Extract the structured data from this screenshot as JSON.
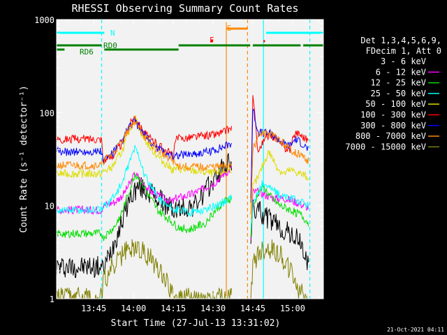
{
  "chart_data": {
    "type": "line",
    "title": "RHESSI Observing Summary Count Rates",
    "xlabel": "Start Time (27-Jul-13 13:31:02)",
    "ylabel": "Count Rate (s⁻¹ detector⁻¹)",
    "ylog": true,
    "ylim": [
      1,
      1000
    ],
    "xlim_min": [
      0,
      100.6
    ],
    "x_ticks": [
      {
        "t": 14.0,
        "label": "13:45"
      },
      {
        "t": 29.0,
        "label": "14:00"
      },
      {
        "t": 44.0,
        "label": "14:15"
      },
      {
        "t": 59.0,
        "label": "14:30"
      },
      {
        "t": 74.0,
        "label": "14:45"
      },
      {
        "t": 89.0,
        "label": "15:00"
      }
    ],
    "y_ticks": [
      {
        "v": 1,
        "label": "1"
      },
      {
        "v": 10,
        "label": "10"
      },
      {
        "v": 100,
        "label": "100"
      },
      {
        "v": 1000,
        "label": "1000"
      }
    ],
    "legend_header": [
      "Det 1,3,4,5,6,9,",
      "FDecim 1, Att 0"
    ],
    "series": [
      {
        "name": "3 - 6 keV",
        "color": "#000000",
        "x": [
          0,
          10,
          17,
          17.5,
          24,
          27,
          29,
          31,
          35,
          38,
          44,
          45,
          52,
          56,
          60,
          63,
          66,
          72,
          73,
          74,
          76,
          78,
          82,
          85,
          88,
          92,
          95
        ],
        "y": [
          2.2,
          2.2,
          2.2,
          2.0,
          6,
          11,
          14,
          16,
          14,
          12,
          9,
          9,
          10,
          14,
          20,
          26,
          30,
          null,
          3,
          9,
          9,
          8,
          6.5,
          5.5,
          5,
          4,
          2.2
        ]
      },
      {
        "name": "6 - 12 keV",
        "color": "#ff00ff",
        "x": [
          0,
          10,
          17,
          17.5,
          22,
          25,
          28,
          29.5,
          31,
          33,
          36,
          40,
          44,
          45,
          50,
          55,
          60,
          63,
          66,
          72,
          73,
          74,
          76,
          79,
          82,
          86,
          90,
          95
        ],
        "y": [
          9,
          9,
          9,
          10,
          11,
          13,
          18,
          22,
          20,
          17,
          14,
          12,
          11,
          12,
          13,
          15,
          18,
          22,
          25,
          null,
          3,
          14,
          14,
          13,
          12,
          12,
          11,
          9.5
        ]
      },
      {
        "name": "12 - 25 keV",
        "color": "#00dd00",
        "x": [
          0,
          10,
          17,
          17.5,
          22,
          25,
          28,
          29.5,
          31,
          34,
          38,
          44,
          45,
          50,
          56,
          60,
          63,
          66,
          72,
          73,
          74,
          76,
          78,
          80,
          84,
          88,
          92,
          95
        ],
        "y": [
          5,
          5,
          5,
          4.5,
          6,
          9,
          16,
          22,
          20,
          14,
          9,
          6.5,
          6,
          5.5,
          6.5,
          9,
          11,
          12,
          null,
          4,
          9,
          14,
          16,
          13,
          10,
          9,
          8,
          6.5
        ]
      },
      {
        "name": "25 - 50 keV",
        "color": "#00ffff",
        "x": [
          0,
          10,
          17,
          17.5,
          22,
          25,
          27,
          29.5,
          31,
          33,
          36,
          40,
          44,
          45,
          50,
          56,
          60,
          63,
          66,
          72,
          73,
          74,
          76,
          78,
          80,
          84,
          88,
          92,
          95
        ],
        "y": [
          9,
          9,
          9,
          9.5,
          13,
          18,
          27,
          42,
          35,
          22,
          15,
          11,
          9,
          9,
          8.5,
          9,
          10,
          11,
          12,
          null,
          4,
          10,
          14,
          18,
          16,
          13,
          12,
          11,
          10
        ]
      },
      {
        "name": "50 - 100 keV",
        "color": "#dddd00",
        "x": [
          0,
          10,
          17,
          17.5,
          21,
          25,
          27,
          29.5,
          31,
          33,
          36,
          40,
          44,
          45,
          50,
          55,
          60,
          63,
          66,
          72,
          73,
          74,
          76,
          78,
          80,
          82,
          84,
          86,
          88,
          92,
          95
        ],
        "y": [
          22,
          22,
          22,
          23,
          26,
          40,
          60,
          90,
          70,
          52,
          40,
          30,
          24,
          25,
          24,
          23,
          22,
          23,
          25,
          null,
          5,
          16,
          20,
          28,
          38,
          30,
          24,
          22,
          24,
          22,
          20
        ]
      },
      {
        "name": "100 - 300 keV",
        "color": "#ff0000",
        "x": [
          0,
          10,
          17,
          17.5,
          21,
          25,
          27,
          29.5,
          31,
          33,
          36,
          40,
          44,
          45,
          50,
          55,
          60,
          63,
          66,
          72,
          73,
          74,
          76,
          78,
          80,
          82,
          84,
          86,
          88,
          90,
          92,
          95
        ],
        "y": [
          52,
          52,
          52,
          30,
          34,
          48,
          70,
          92,
          75,
          62,
          50,
          42,
          34,
          52,
          54,
          56,
          58,
          62,
          68,
          null,
          5,
          150,
          38,
          48,
          58,
          55,
          48,
          42,
          40,
          62,
          58,
          50
        ]
      },
      {
        "name": "300 - 800 keV",
        "color": "#0000ff",
        "x": [
          0,
          10,
          17,
          17.5,
          21,
          25,
          27,
          29.5,
          31,
          33,
          36,
          40,
          44,
          45,
          50,
          55,
          60,
          63,
          66,
          72,
          73,
          74,
          76,
          78,
          80,
          82,
          84,
          86,
          88,
          90,
          92,
          95
        ],
        "y": [
          38,
          38,
          38,
          30,
          36,
          50,
          68,
          82,
          70,
          58,
          46,
          38,
          34,
          35,
          36,
          37,
          40,
          43,
          47,
          null,
          5,
          110,
          62,
          60,
          60,
          56,
          50,
          46,
          44,
          52,
          48,
          40
        ]
      },
      {
        "name": "800 - 7000 keV",
        "color": "#ff8800",
        "x": [
          0,
          10,
          17,
          17.5,
          21,
          25,
          27,
          29.5,
          31,
          33,
          36,
          40,
          44,
          45,
          50,
          55,
          60,
          63,
          66,
          72,
          73,
          74,
          76,
          78,
          80,
          82,
          84,
          86,
          88,
          92,
          95
        ],
        "y": [
          27,
          27,
          27,
          30,
          36,
          50,
          66,
          80,
          68,
          56,
          44,
          36,
          30,
          27,
          26,
          26,
          26,
          26,
          28,
          null,
          5,
          40,
          55,
          60,
          60,
          55,
          50,
          45,
          40,
          35,
          30
        ]
      },
      {
        "name": "7000 - 15000 keV",
        "color": "#808000",
        "x": [
          0,
          10,
          17,
          17.5,
          21,
          23,
          25,
          27,
          29,
          31,
          33,
          35,
          37,
          39,
          41,
          43,
          44,
          45,
          50,
          55,
          60,
          63,
          66,
          72,
          73,
          74,
          76,
          78,
          80,
          82,
          84,
          86,
          88,
          90,
          92,
          95
        ],
        "y": [
          1,
          1,
          1,
          1.5,
          2.2,
          2.5,
          3.0,
          3.3,
          3.6,
          3.5,
          3.1,
          2.8,
          2.4,
          2.1,
          1.7,
          1.3,
          1.0,
          1,
          1,
          1,
          1,
          1,
          1,
          null,
          1,
          2.2,
          3.0,
          3.3,
          3.4,
          3.3,
          3.0,
          2.5,
          2.0,
          1.5,
          1.2,
          1
        ]
      }
    ],
    "flag_bars": [
      {
        "label": "N",
        "color": "#00ffff",
        "segments": [
          [
            0,
            18
          ],
          [
            79,
            100.6
          ]
        ]
      },
      {
        "label": "F",
        "color": "#ff0000",
        "segments": [
          [
            58,
            59
          ],
          [
            78,
            78.6
          ]
        ]
      },
      {
        "label": "S",
        "color": "#ff8800",
        "segments": [
          [
            64,
            72
          ]
        ]
      },
      {
        "label": "RD0",
        "color": "#008000",
        "segments": [
          [
            0,
            17
          ],
          [
            46,
            73
          ],
          [
            74,
            92
          ],
          [
            93,
            100.6
          ]
        ]
      },
      {
        "label": "RD6",
        "color": "#008000",
        "segments": [
          [
            0,
            3
          ],
          [
            18,
            46
          ]
        ]
      }
    ],
    "vertical_lines": [
      {
        "t": 17.0,
        "color": "#00ffff",
        "style": "dashed"
      },
      {
        "t": 64.0,
        "color": "#ff8800",
        "style": "solid"
      },
      {
        "t": 72.0,
        "color": "#ff8800",
        "style": "dashed"
      },
      {
        "t": 78.0,
        "color": "#00ffff",
        "style": "solid"
      },
      {
        "t": 95.5,
        "color": "#00ffff",
        "style": "dashed"
      }
    ]
  },
  "footer_date": "21-Oct-2021 04:11"
}
